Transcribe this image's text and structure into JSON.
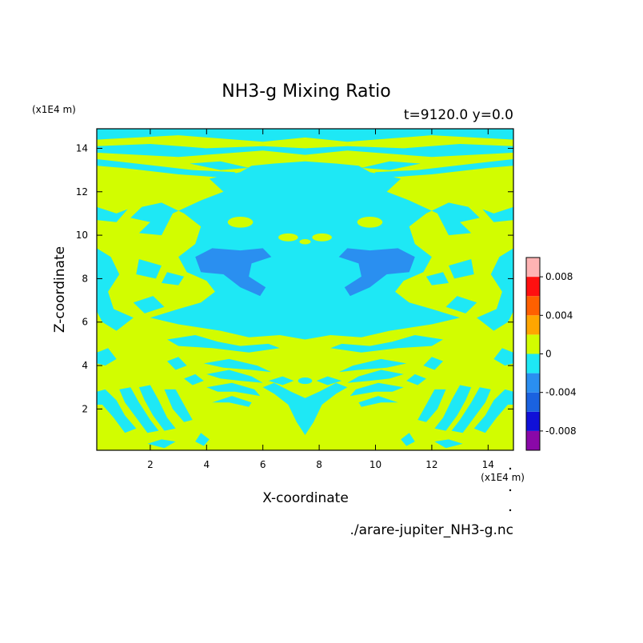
{
  "chart_data": {
    "type": "heatmap",
    "title": "NH3-g Mixing Ratio",
    "subtitle": "t=9120.0 y=0.0",
    "xlabel": "X-coordinate",
    "ylabel": "Z-coordinate",
    "x_unit": "(x1E4 m)",
    "y_unit": "(x1E4 m)",
    "xlim": [
      0.1,
      14.9
    ],
    "ylim": [
      0.1,
      14.9
    ],
    "x_ticks": [
      2,
      4,
      6,
      8,
      10,
      12,
      14
    ],
    "y_ticks": [
      2,
      4,
      6,
      8,
      10,
      12,
      14
    ],
    "filename": "./arare-jupiter_NH3-g.nc",
    "colorbar": {
      "levels": [
        -0.01,
        -0.008,
        -0.006,
        -0.004,
        -0.002,
        0,
        0.002,
        0.004,
        0.006,
        0.008,
        0.01
      ],
      "colors": [
        "#8a08a8",
        "#1010d8",
        "#1a62e0",
        "#2a8ff0",
        "#1ee8f5",
        "#d2fd00",
        "#ffa600",
        "#ff6000",
        "#ff1010",
        "#ffb3b3"
      ],
      "labels": [
        {
          "value": -0.008,
          "text": "-0.008"
        },
        {
          "value": -0.004,
          "text": "-0.004"
        },
        {
          "value": 0,
          "text": "0"
        },
        {
          "value": 0.004,
          "text": "0.004"
        },
        {
          "value": 0.008,
          "text": "0.008"
        }
      ]
    },
    "field": {
      "description_levels": [
        "#d2fd00 = 0 to 0.002",
        "#1ee8f5 = -0.002 to 0",
        "#2a8ff0 = -0.004 to -0.002"
      ],
      "background_level_color": "#d2fd00",
      "negative_small_color": "#1ee8f5",
      "negative_medium_color": "#2a8ff0"
    }
  }
}
